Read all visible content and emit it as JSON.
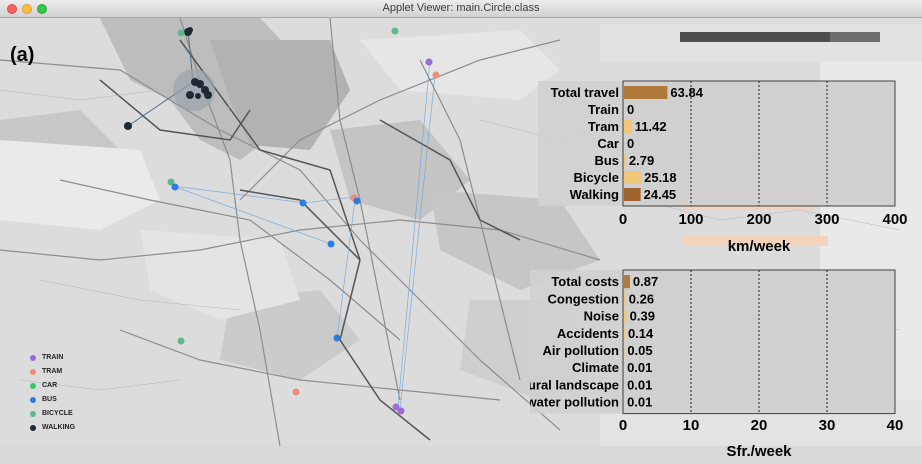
{
  "window": {
    "title": "Applet Viewer: main.Circle.class"
  },
  "panel_label": "(a)",
  "legend": [
    {
      "label": "TRAIN",
      "color": "#9a6bd6"
    },
    {
      "label": "TRAM",
      "color": "#f08a7a"
    },
    {
      "label": "CAR",
      "color": "#2ecc71"
    },
    {
      "label": "BUS",
      "color": "#2a7de1"
    },
    {
      "label": "BICYCLE",
      "color": "#5fb88a"
    },
    {
      "label": "WALKING",
      "color": "#1e2a33"
    }
  ],
  "chart_data": [
    {
      "type": "bar",
      "orientation": "horizontal",
      "categories": [
        "Total travel",
        "Train",
        "Tram",
        "Car",
        "Bus",
        "Bicycle",
        "Walking"
      ],
      "values": [
        63.84,
        0,
        11.42,
        0,
        2.79,
        25.18,
        24.45
      ],
      "value_labels": [
        "63.84",
        "0",
        "11.42",
        "0",
        "2.79",
        "25.18",
        "24.45"
      ],
      "colors": [
        "#b07a3a",
        "#f3c77a",
        "#f3c77a",
        "#f3c77a",
        "#f3c77a",
        "#f3c77a",
        "#a0622e"
      ],
      "xlabel": "km/week",
      "xlim": [
        0,
        400
      ],
      "xticks": [
        "0",
        "100",
        "200",
        "300",
        "400"
      ],
      "grid": "dashed vertical"
    },
    {
      "type": "bar",
      "orientation": "horizontal",
      "categories": [
        "Total costs",
        "Congestion",
        "Noise",
        "Accidents",
        "Air pollution",
        "Climate",
        "Natural landscape",
        "Soil and water pollution"
      ],
      "values": [
        0.87,
        0.26,
        0.39,
        0.14,
        0.05,
        0.01,
        0.01,
        0.01
      ],
      "value_labels": [
        "0.87",
        "0.26",
        "0.39",
        "0.14",
        "0.05",
        "0.01",
        "0.01",
        "0.01"
      ],
      "colors": [
        "#b07a3a",
        "#f3c77a",
        "#f3c77a",
        "#f3c77a",
        "#f3c77a",
        "#f3c77a",
        "#f3c77a",
        "#f3c77a"
      ],
      "xlabel": "Sfr./week",
      "xlim": [
        0,
        40
      ],
      "xticks": [
        "0",
        "10",
        "20",
        "30",
        "40"
      ],
      "grid": "dashed vertical"
    }
  ]
}
